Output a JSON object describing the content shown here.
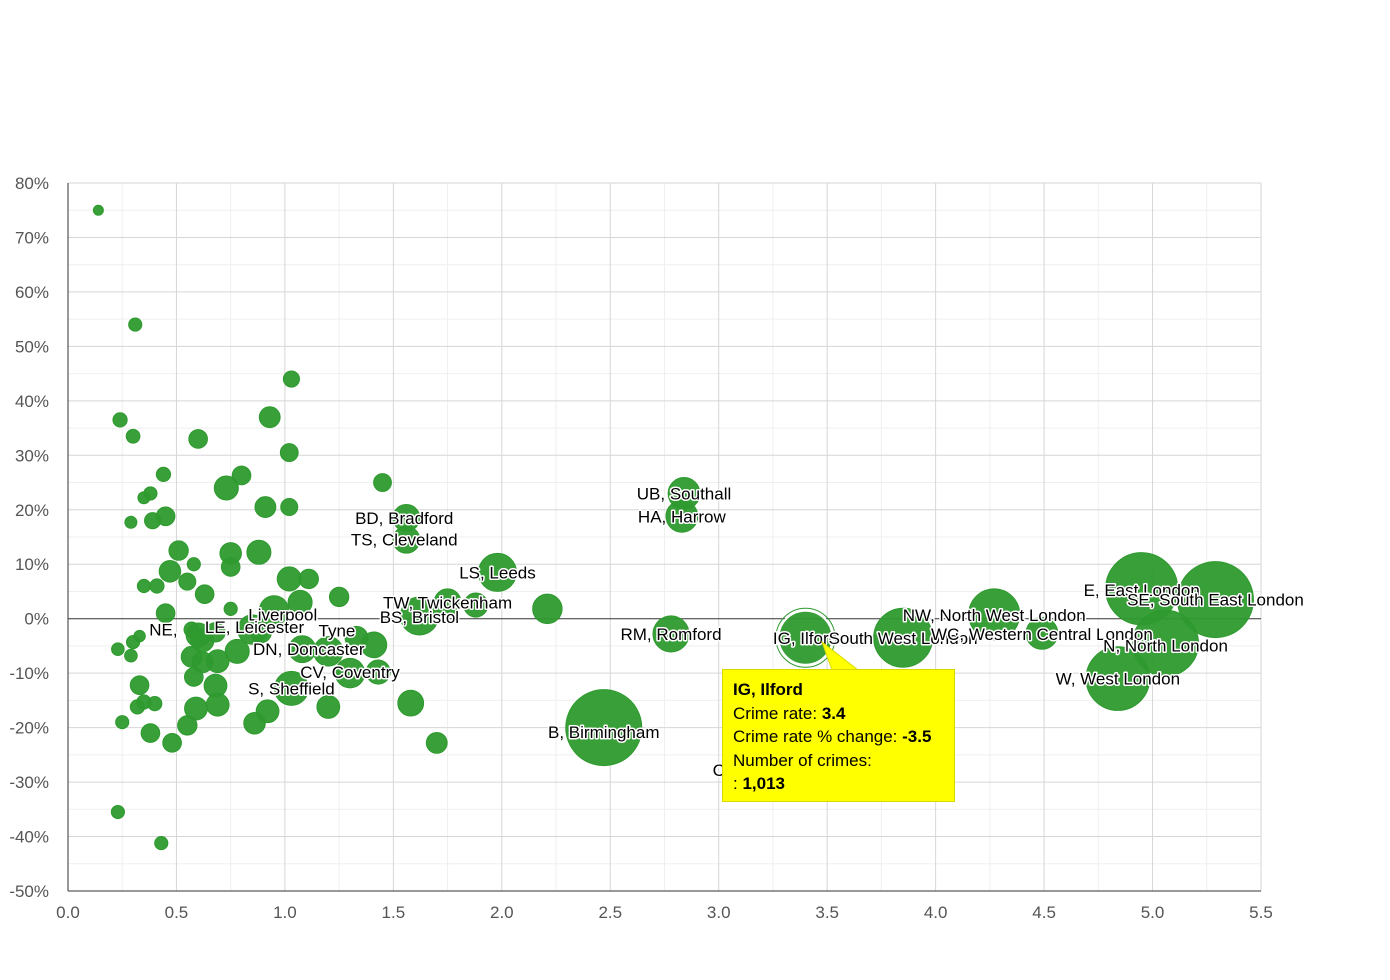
{
  "chart_data": {
    "type": "scatter",
    "variant": "bubble",
    "title": "",
    "xlabel": "",
    "ylabel": "",
    "xlim": [
      0,
      5.5
    ],
    "ylim": [
      -50,
      80
    ],
    "x_ticks": [
      "0.0",
      "0.5",
      "1.0",
      "1.5",
      "2.0",
      "2.5",
      "3.0",
      "3.5",
      "4.0",
      "4.5",
      "5.0",
      "5.5"
    ],
    "y_ticks": [
      "80%",
      "70%",
      "60%",
      "50%",
      "40%",
      "30%",
      "20%",
      "10%",
      "0%",
      "-10%",
      "-20%",
      "-30%",
      "-40%",
      "-50%"
    ],
    "bubble_color": "#2e9a2e",
    "highlight_color": "#ffffff",
    "points": [
      {
        "x": 0.14,
        "y": 75,
        "crimes": 30
      },
      {
        "x": 0.31,
        "y": 54,
        "crimes": 60
      },
      {
        "x": 1.03,
        "y": 44,
        "crimes": 90
      },
      {
        "x": 0.24,
        "y": 36.5,
        "crimes": 70
      },
      {
        "x": 0.93,
        "y": 37,
        "crimes": 150
      },
      {
        "x": 0.3,
        "y": 33.5,
        "crimes": 65
      },
      {
        "x": 0.6,
        "y": 33,
        "crimes": 120
      },
      {
        "x": 1.02,
        "y": 30.5,
        "crimes": 110
      },
      {
        "x": 0.44,
        "y": 26.5,
        "crimes": 70
      },
      {
        "x": 0.8,
        "y": 26.3,
        "crimes": 120
      },
      {
        "x": 1.45,
        "y": 25,
        "crimes": 110
      },
      {
        "x": 0.73,
        "y": 24,
        "crimes": 200
      },
      {
        "x": 0.38,
        "y": 23,
        "crimes": 60
      },
      {
        "x": 0.35,
        "y": 22.2,
        "crimes": 50
      },
      {
        "x": 0.91,
        "y": 20.5,
        "crimes": 150
      },
      {
        "x": 1.02,
        "y": 20.5,
        "crimes": 100
      },
      {
        "x": 0.45,
        "y": 18.8,
        "crimes": 120
      },
      {
        "x": 0.39,
        "y": 18,
        "crimes": 90
      },
      {
        "x": 0.29,
        "y": 17.7,
        "crimes": 50
      },
      {
        "x": 0.51,
        "y": 12.5,
        "crimes": 130
      },
      {
        "x": 0.88,
        "y": 12.2,
        "crimes": 200
      },
      {
        "x": 0.75,
        "y": 12,
        "crimes": 160
      },
      {
        "x": 0.58,
        "y": 10,
        "crimes": 60
      },
      {
        "x": 0.75,
        "y": 9.5,
        "crimes": 120
      },
      {
        "x": 0.47,
        "y": 8.7,
        "crimes": 160
      },
      {
        "x": 1.02,
        "y": 7.3,
        "crimes": 200
      },
      {
        "x": 1.11,
        "y": 7.3,
        "crimes": 130
      },
      {
        "x": 0.55,
        "y": 6.8,
        "crimes": 100
      },
      {
        "x": 0.41,
        "y": 6,
        "crimes": 70
      },
      {
        "x": 0.35,
        "y": 6,
        "crimes": 60
      },
      {
        "x": 0.63,
        "y": 4.5,
        "crimes": 120
      },
      {
        "x": 1.25,
        "y": 4,
        "crimes": 130
      },
      {
        "x": 1.07,
        "y": 3,
        "crimes": 200
      },
      {
        "x": 0.45,
        "y": 1,
        "crimes": 120
      },
      {
        "x": 0.75,
        "y": 1.8,
        "crimes": 60
      },
      {
        "x": 0.95,
        "y": 1.5,
        "crimes": 300
      },
      {
        "x": 0.33,
        "y": -3.2,
        "crimes": 45
      },
      {
        "x": 0.3,
        "y": -4.3,
        "crimes": 60
      },
      {
        "x": 0.23,
        "y": -5.6,
        "crimes": 55
      },
      {
        "x": 0.29,
        "y": -6.8,
        "crimes": 55
      },
      {
        "x": 0.6,
        "y": -3,
        "crimes": 200
      },
      {
        "x": 0.62,
        "y": -4,
        "crimes": 180
      },
      {
        "x": 0.57,
        "y": -2,
        "crimes": 80
      },
      {
        "x": 0.68,
        "y": -2.5,
        "crimes": 130
      },
      {
        "x": 0.85,
        "y": -2,
        "crimes": 300
      },
      {
        "x": 0.89,
        "y": -2.5,
        "crimes": 150
      },
      {
        "x": 1.08,
        "y": -5.6,
        "crimes": 250
      },
      {
        "x": 1.2,
        "y": -6,
        "crimes": 300
      },
      {
        "x": 1.33,
        "y": -3.5,
        "crimes": 180
      },
      {
        "x": 1.41,
        "y": -4.8,
        "crimes": 230
      },
      {
        "x": 0.78,
        "y": -6,
        "crimes": 200
      },
      {
        "x": 0.57,
        "y": -7,
        "crimes": 150
      },
      {
        "x": 0.62,
        "y": -8,
        "crimes": 150
      },
      {
        "x": 0.69,
        "y": -7.8,
        "crimes": 180
      },
      {
        "x": 0.58,
        "y": -10.7,
        "crimes": 120
      },
      {
        "x": 0.68,
        "y": -12.3,
        "crimes": 180
      },
      {
        "x": 0.33,
        "y": -12.2,
        "crimes": 120
      },
      {
        "x": 1.3,
        "y": -10,
        "crimes": 300
      },
      {
        "x": 1.43,
        "y": -9.8,
        "crimes": 200
      },
      {
        "x": 1.03,
        "y": -12.8,
        "crimes": 400
      },
      {
        "x": 0.35,
        "y": -15.3,
        "crimes": 70
      },
      {
        "x": 0.4,
        "y": -15.6,
        "crimes": 70
      },
      {
        "x": 0.32,
        "y": -16.2,
        "crimes": 70
      },
      {
        "x": 0.59,
        "y": -16.5,
        "crimes": 180
      },
      {
        "x": 0.69,
        "y": -15.8,
        "crimes": 180
      },
      {
        "x": 0.92,
        "y": -17,
        "crimes": 180
      },
      {
        "x": 1.2,
        "y": -16.2,
        "crimes": 180
      },
      {
        "x": 1.58,
        "y": -15.5,
        "crimes": 230
      },
      {
        "x": 0.25,
        "y": -19,
        "crimes": 60
      },
      {
        "x": 0.55,
        "y": -19.6,
        "crimes": 130
      },
      {
        "x": 0.86,
        "y": -19.2,
        "crimes": 160
      },
      {
        "x": 0.38,
        "y": -21,
        "crimes": 120
      },
      {
        "x": 0.48,
        "y": -22.8,
        "crimes": 120
      },
      {
        "x": 1.7,
        "y": -22.8,
        "crimes": 150
      },
      {
        "x": 0.23,
        "y": -35.5,
        "crimes": 60
      },
      {
        "x": 0.43,
        "y": -41.2,
        "crimes": 60
      },
      {
        "x": 1.56,
        "y": 18.5,
        "crimes": 250
      },
      {
        "x": 1.56,
        "y": 14.5,
        "crimes": 250
      },
      {
        "x": 1.98,
        "y": 8.5,
        "crimes": 500
      },
      {
        "x": 1.75,
        "y": 3,
        "crimes": 250
      },
      {
        "x": 1.88,
        "y": 2.5,
        "crimes": 200
      },
      {
        "x": 1.62,
        "y": 0.5,
        "crimes": 500
      },
      {
        "x": 2.21,
        "y": 1.8,
        "crimes": 300
      },
      {
        "x": 2.84,
        "y": 23,
        "crimes": 350
      },
      {
        "x": 2.83,
        "y": 18.8,
        "crimes": 350
      },
      {
        "x": 2.78,
        "y": -2.8,
        "crimes": 450
      },
      {
        "x": 2.47,
        "y": -20,
        "crimes": 2000
      },
      {
        "x": 3.85,
        "y": -3.5,
        "crimes": 1200
      },
      {
        "x": 4.27,
        "y": 0.8,
        "crimes": 900
      },
      {
        "x": 4.49,
        "y": -2.7,
        "crimes": 350
      },
      {
        "x": 4.95,
        "y": 5.5,
        "crimes": 1800
      },
      {
        "x": 5.29,
        "y": 3.5,
        "crimes": 2000
      },
      {
        "x": 5.06,
        "y": -4.5,
        "crimes": 1500
      },
      {
        "x": 4.84,
        "y": -11,
        "crimes": 1400
      },
      {
        "x": 3.4,
        "y": -3.5,
        "crimes": 1013,
        "highlight": true
      }
    ],
    "labels": [
      {
        "text": "UB, Southall",
        "x": 2.84,
        "y": 23
      },
      {
        "text": "HA, Harrow",
        "x": 2.83,
        "y": 18.8
      },
      {
        "text": "BD, Bradford",
        "x": 1.55,
        "y": 18.5
      },
      {
        "text": "TS, Cleveland",
        "x": 1.55,
        "y": 14.5
      },
      {
        "text": "LS, Leeds",
        "x": 1.98,
        "y": 8.5
      },
      {
        "text": "TW, Twickenham",
        "x": 1.75,
        "y": 3
      },
      {
        "text": "BS, Bristol",
        "x": 1.62,
        "y": 0.3
      },
      {
        "text": "Liverpool",
        "x": 0.99,
        "y": 0.8
      },
      {
        "text": "LE, Leicester",
        "x": 0.86,
        "y": -1.5
      },
      {
        "text": "Tyne",
        "x": 1.24,
        "y": -2.2
      },
      {
        "text": "NE,",
        "x": 0.44,
        "y": -2
      },
      {
        "text": "DN, Doncaster",
        "x": 1.11,
        "y": -5.6
      },
      {
        "text": "CV, Coventry",
        "x": 1.3,
        "y": -9.8
      },
      {
        "text": "S, Sheffield",
        "x": 1.03,
        "y": -12.8
      },
      {
        "text": "RM, Romford",
        "x": 2.78,
        "y": -2.8
      },
      {
        "text": "B, Birmingham",
        "x": 2.47,
        "y": -20.8
      },
      {
        "text": "IG, Ilford",
        "x": 3.4,
        "y": -3.5
      },
      {
        "text": "South West London",
        "x": 3.85,
        "y": -3.5
      },
      {
        "text": "NW, North West London",
        "x": 4.27,
        "y": 0.7
      },
      {
        "text": "WC, Western Central London",
        "x": 4.49,
        "y": -2.8
      },
      {
        "text": "E, East London",
        "x": 4.95,
        "y": 5.3
      },
      {
        "text": "SE, South East London",
        "x": 5.29,
        "y": 3.5
      },
      {
        "text": "N, North London",
        "x": 5.06,
        "y": -4.9
      },
      {
        "text": "W, West London",
        "x": 4.84,
        "y": -11
      },
      {
        "text": "C",
        "x": 3.0,
        "y": -27.8
      }
    ],
    "tooltip": {
      "title": "IG, Ilford",
      "rate_label": "Crime rate:",
      "rate_value": "3.4",
      "change_label": "Crime rate % change:",
      "change_value": "-3.5",
      "crimes_label": "Number of crimes:",
      "crimes_prefix": ":",
      "crimes_value": "1,013"
    }
  }
}
